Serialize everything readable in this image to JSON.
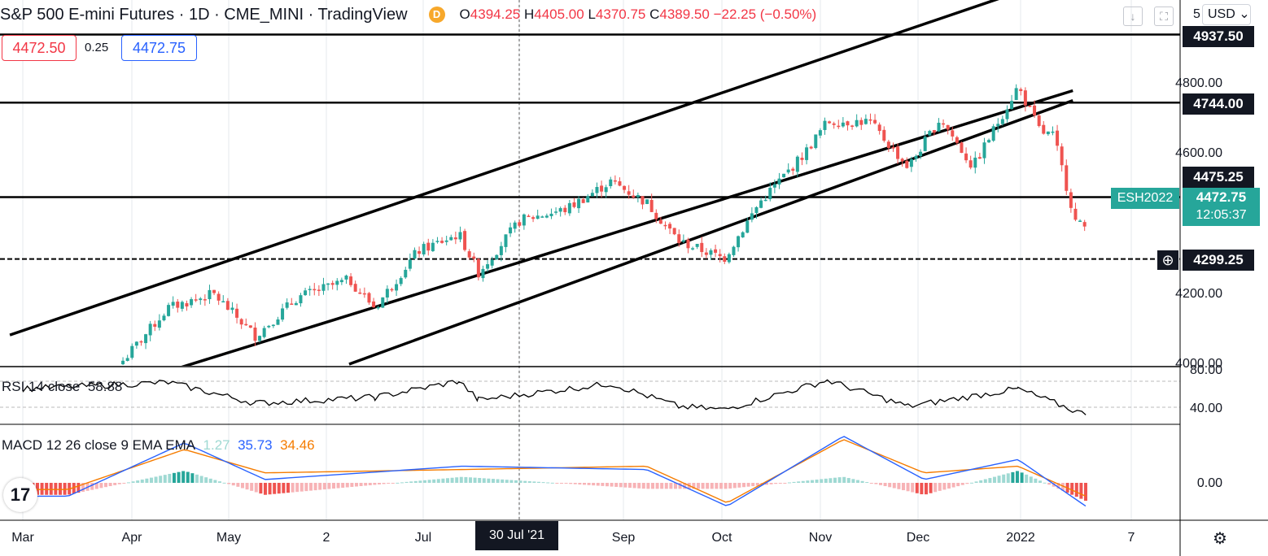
{
  "header": {
    "symbol_title": "S&P 500 E-mini Futures · 1D · CME_MINI · TradingView",
    "d_badge": "D",
    "ohlc": {
      "o_label": "O",
      "o": "4394.25",
      "h_label": "H",
      "h": "4405.00",
      "l_label": "L",
      "l": "4370.75",
      "c_label": "C",
      "c": "4389.50",
      "change": "−22.25 (−0.50%)"
    }
  },
  "trade": {
    "sell_price": "4472.50",
    "spread": "0.25",
    "buy_price": "4472.75"
  },
  "currency": {
    "prefix": "5",
    "label": "USD"
  },
  "price_axis": {
    "ticks": [
      "4800.00",
      "4600.00",
      "4200.00",
      "4000.00"
    ],
    "line_labels": [
      "4937.50",
      "4744.00",
      "4475.25",
      "4299.25"
    ],
    "symbol_tag": "ESH2022",
    "current_price": "4472.75",
    "countdown": "12:05:37"
  },
  "rsi": {
    "label": "RSI 14 close",
    "value": "58.88",
    "ticks": [
      "80.00",
      "40.00"
    ]
  },
  "macd": {
    "label": "MACD 12 26 close 9 EMA EMA",
    "hist_value": "1.27",
    "macd_value": "35.73",
    "signal_value": "34.46",
    "tick": "0.00"
  },
  "time_axis": {
    "labels": [
      "Mar",
      "Apr",
      "May",
      "2",
      "Jul",
      "Sep",
      "Oct",
      "Nov",
      "Dec",
      "2022",
      "7"
    ],
    "highlight": "30 Jul '21"
  },
  "logo_text": "17",
  "colors": {
    "up": "#26a69a",
    "down": "#ef5350",
    "macd": "#2962ff",
    "signal": "#f57c00",
    "text": "#131722",
    "tag": "#26a69a"
  },
  "chart_data": {
    "type": "candlestick",
    "title": "S&P 500 E-mini Futures",
    "timeframe": "1D",
    "ylim": [
      3950,
      5050
    ],
    "horizontal_lines": [
      4937.5,
      4744.0,
      4475.25,
      4299.25
    ],
    "trendlines": [
      {
        "from": {
          "date": "2021-02-25",
          "price": 4083
        },
        "to": {
          "date": "2022-01-10",
          "price": 5080
        }
      },
      {
        "from": {
          "date": "2021-02-25",
          "price": 3840
        },
        "to": {
          "date": "2022-01-20",
          "price": 4778
        }
      },
      {
        "from": {
          "date": "2021-06-10",
          "price": 4000
        },
        "to": {
          "date": "2022-01-20",
          "price": 4750
        }
      }
    ],
    "closes": [
      {
        "date": "2021-04-01",
        "close": 4010
      },
      {
        "date": "2021-04-15",
        "close": 4160
      },
      {
        "date": "2021-04-29",
        "close": 4200
      },
      {
        "date": "2021-05-12",
        "close": 4080
      },
      {
        "date": "2021-05-25",
        "close": 4190
      },
      {
        "date": "2021-06-10",
        "close": 4240
      },
      {
        "date": "2021-06-18",
        "close": 4160
      },
      {
        "date": "2021-07-01",
        "close": 4320
      },
      {
        "date": "2021-07-14",
        "close": 4370
      },
      {
        "date": "2021-07-20",
        "close": 4260
      },
      {
        "date": "2021-08-02",
        "close": 4410
      },
      {
        "date": "2021-08-16",
        "close": 4440
      },
      {
        "date": "2021-08-30",
        "close": 4520
      },
      {
        "date": "2021-09-10",
        "close": 4460
      },
      {
        "date": "2021-09-20",
        "close": 4350
      },
      {
        "date": "2021-10-04",
        "close": 4300
      },
      {
        "date": "2021-10-15",
        "close": 4460
      },
      {
        "date": "2021-10-29",
        "close": 4600
      },
      {
        "date": "2021-11-05",
        "close": 4690
      },
      {
        "date": "2021-11-18",
        "close": 4690
      },
      {
        "date": "2021-11-30",
        "close": 4560
      },
      {
        "date": "2021-12-10",
        "close": 4700
      },
      {
        "date": "2021-12-20",
        "close": 4560
      },
      {
        "date": "2022-01-03",
        "close": 4790
      },
      {
        "date": "2022-01-10",
        "close": 4660
      },
      {
        "date": "2022-01-14",
        "close": 4650
      },
      {
        "date": "2022-01-21",
        "close": 4400
      },
      {
        "date": "2022-01-24",
        "close": 4390
      }
    ],
    "rsi_series": [
      {
        "date": "2021-03-01",
        "value": 62
      },
      {
        "date": "2021-04-15",
        "value": 72
      },
      {
        "date": "2021-05-12",
        "value": 40
      },
      {
        "date": "2021-06-18",
        "value": 49
      },
      {
        "date": "2021-07-14",
        "value": 74
      },
      {
        "date": "2021-07-20",
        "value": 45
      },
      {
        "date": "2021-08-30",
        "value": 70
      },
      {
        "date": "2021-09-20",
        "value": 35
      },
      {
        "date": "2021-10-04",
        "value": 30
      },
      {
        "date": "2021-11-05",
        "value": 75
      },
      {
        "date": "2021-11-30",
        "value": 35
      },
      {
        "date": "2022-01-03",
        "value": 62
      },
      {
        "date": "2022-01-24",
        "value": 22
      }
    ],
    "macd_series": [
      {
        "date": "2021-03-15",
        "macd": -20,
        "signal": -10
      },
      {
        "date": "2021-04-20",
        "macd": 60,
        "signal": 50
      },
      {
        "date": "2021-05-15",
        "macd": 5,
        "signal": 15
      },
      {
        "date": "2021-07-15",
        "macd": 25,
        "signal": 20
      },
      {
        "date": "2021-09-10",
        "macd": 20,
        "signal": 25
      },
      {
        "date": "2021-10-05",
        "macd": -35,
        "signal": -30
      },
      {
        "date": "2021-11-10",
        "macd": 70,
        "signal": 65
      },
      {
        "date": "2021-12-05",
        "macd": 5,
        "signal": 15
      },
      {
        "date": "2022-01-03",
        "macd": 35,
        "signal": 25
      },
      {
        "date": "2022-01-24",
        "macd": -35,
        "signal": -20
      }
    ]
  }
}
